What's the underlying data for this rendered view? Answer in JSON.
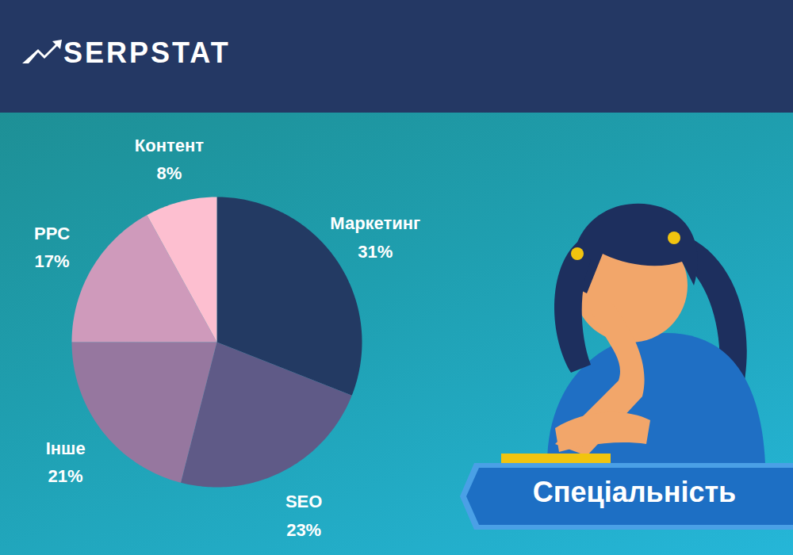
{
  "header": {
    "logo": "SERPSTAT"
  },
  "chart_data": {
    "type": "pie",
    "title": "Спеціальність",
    "categories": [
      "Маркетинг",
      "SEO",
      "Інше",
      "PPC",
      "Контент"
    ],
    "values": [
      31,
      23,
      21,
      17,
      8
    ],
    "value_labels": [
      "31%",
      "23%",
      "21%",
      "17%",
      "8%"
    ],
    "colors": [
      "#233a63",
      "#5f5a87",
      "#96779f",
      "#cf9abb",
      "#fdbfd0"
    ],
    "data_labels": true,
    "tick_labels": false
  }
}
